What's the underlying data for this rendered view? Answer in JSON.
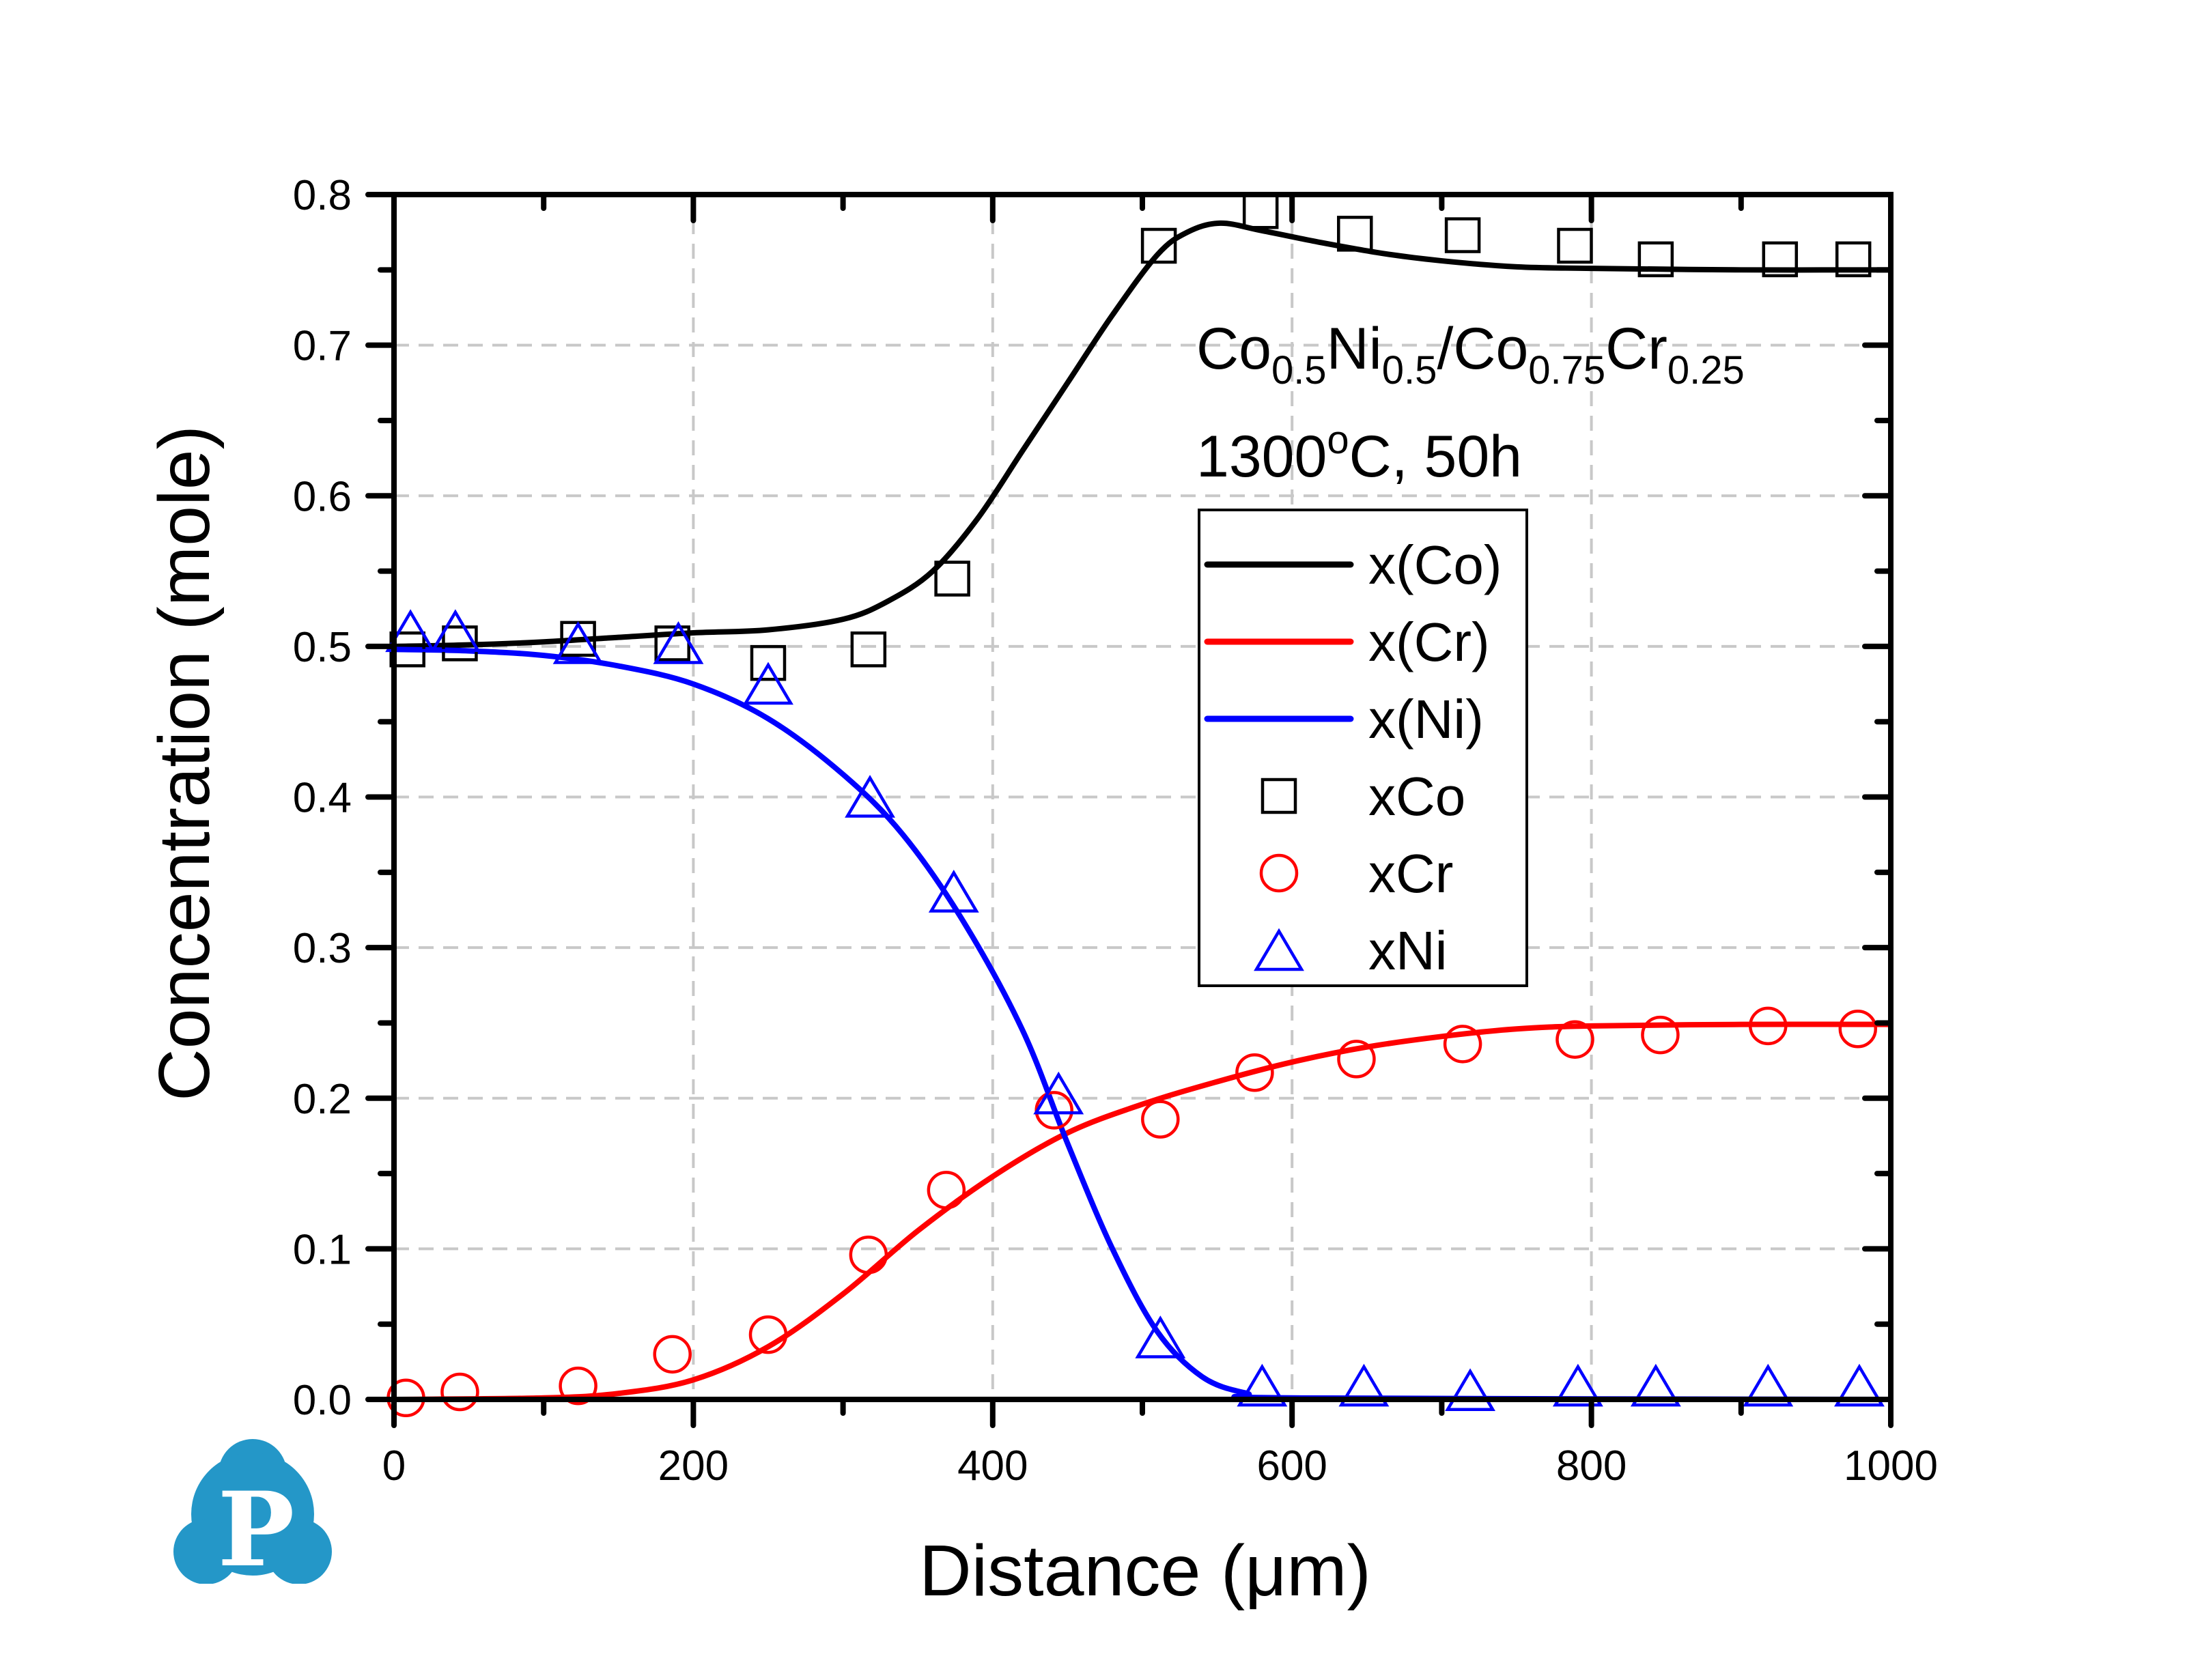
{
  "chart_data": {
    "type": "line",
    "title": "",
    "xlabel": "Distance (μm)",
    "ylabel": "Concentration (mole)",
    "xlim": [
      0,
      1000
    ],
    "ylim": [
      0.0,
      0.8
    ],
    "x_ticks": [
      0,
      200,
      400,
      600,
      800,
      1000
    ],
    "x_tick_labels": [
      "0",
      "200",
      "400",
      "600",
      "800",
      "1000"
    ],
    "x_minor_step": 100,
    "y_ticks": [
      0.0,
      0.1,
      0.2,
      0.3,
      0.4,
      0.5,
      0.6,
      0.7,
      0.8
    ],
    "y_tick_labels": [
      "0.0",
      "0.1",
      "0.2",
      "0.3",
      "0.4",
      "0.5",
      "0.6",
      "0.7",
      "0.8"
    ],
    "y_minor_step": 0.05,
    "grid": true,
    "legend_position": "upper-center-right",
    "annotations": {
      "composition": [
        {
          "text": "Co",
          "sub": "0.5"
        },
        {
          "text": "Ni",
          "sub": "0.5"
        },
        {
          "text": "/Co",
          "sub": "0.75"
        },
        {
          "text": "Cr",
          "sub": "0.25"
        }
      ],
      "condition": {
        "prefix": "1300",
        "sup": "o",
        "suffix": "C, 50h"
      }
    },
    "series": [
      {
        "name": "x(Co)",
        "kind": "line",
        "color": "#000000",
        "x": [
          0,
          50,
          100,
          150,
          200,
          250,
          300,
          330,
          360,
          390,
          420,
          450,
          480,
          510,
          530,
          552,
          580,
          620,
          660,
          700,
          750,
          800,
          900,
          1000
        ],
        "y": [
          0.5,
          0.501,
          0.503,
          0.506,
          0.509,
          0.511,
          0.518,
          0.53,
          0.55,
          0.585,
          0.63,
          0.675,
          0.72,
          0.76,
          0.775,
          0.781,
          0.776,
          0.768,
          0.761,
          0.756,
          0.752,
          0.751,
          0.75,
          0.75
        ]
      },
      {
        "name": "x(Cr)",
        "kind": "line",
        "color": "#ff0000",
        "x": [
          0,
          100,
          150,
          200,
          250,
          300,
          350,
          400,
          450,
          500,
          550,
          600,
          650,
          700,
          750,
          800,
          900,
          1000
        ],
        "y": [
          0.0,
          0.001,
          0.004,
          0.013,
          0.035,
          0.07,
          0.112,
          0.148,
          0.177,
          0.196,
          0.211,
          0.224,
          0.234,
          0.241,
          0.246,
          0.248,
          0.249,
          0.249
        ]
      },
      {
        "name": "x(Ni)",
        "kind": "line",
        "color": "#0000ff",
        "x": [
          0,
          50,
          100,
          150,
          200,
          250,
          300,
          340,
          380,
          420,
          450,
          480,
          510,
          540,
          570,
          600,
          1000
        ],
        "y": [
          0.498,
          0.497,
          0.494,
          0.487,
          0.475,
          0.452,
          0.415,
          0.375,
          0.318,
          0.245,
          0.17,
          0.1,
          0.045,
          0.015,
          0.004,
          0.001,
          0.0
        ]
      },
      {
        "name": "xCo",
        "kind": "scatter",
        "marker": "square",
        "color": "#000000",
        "x": [
          9,
          44,
          123,
          186,
          250,
          317,
          373,
          511,
          579,
          642,
          714,
          789,
          843,
          926,
          975
        ],
        "y": [
          0.498,
          0.502,
          0.505,
          0.502,
          0.489,
          0.498,
          0.545,
          0.766,
          0.789,
          0.774,
          0.773,
          0.766,
          0.757,
          0.757,
          0.757
        ]
      },
      {
        "name": "xCr",
        "kind": "scatter",
        "marker": "circle",
        "color": "#ff0000",
        "x": [
          8,
          44,
          123,
          186,
          250,
          317,
          369,
          441,
          512,
          575,
          643,
          714,
          789,
          846,
          918,
          978
        ],
        "y": [
          0.001,
          0.005,
          0.009,
          0.03,
          0.043,
          0.096,
          0.139,
          0.192,
          0.186,
          0.217,
          0.226,
          0.236,
          0.239,
          0.242,
          0.248,
          0.246
        ]
      },
      {
        "name": "xNi",
        "kind": "scatter",
        "marker": "triangle",
        "color": "#0000ff",
        "x": [
          11,
          41,
          123,
          190,
          250,
          318,
          374,
          444,
          512,
          580,
          648,
          719,
          791,
          843,
          918,
          979
        ],
        "y": [
          0.51,
          0.51,
          0.502,
          0.502,
          0.475,
          0.4,
          0.337,
          0.203,
          0.041,
          0.009,
          0.009,
          0.006,
          0.009,
          0.009,
          0.009,
          0.009
        ]
      }
    ]
  },
  "logo": {
    "letter": "P",
    "color": "#2497c8",
    "name": "brand-logo"
  }
}
